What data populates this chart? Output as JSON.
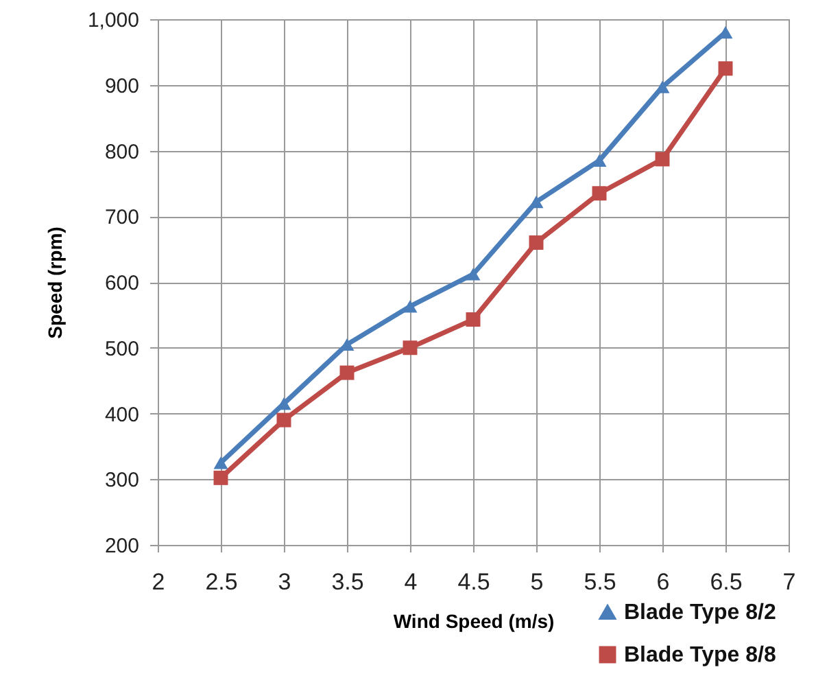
{
  "chart_data": {
    "type": "line",
    "xlabel": "Wind Speed (m/s)",
    "ylabel": "Speed (rpm)",
    "x": [
      2.5,
      3,
      3.5,
      4,
      4.5,
      5,
      5.5,
      6,
      6.5
    ],
    "series": [
      {
        "name": "Blade Type 8/2",
        "color": "#4a7ebb",
        "marker": "triangle",
        "values": [
          325,
          415,
          505,
          563,
          612,
          722,
          785,
          897,
          980
        ]
      },
      {
        "name": "Blade Type 8/8",
        "color": "#be4b48",
        "marker": "square",
        "values": [
          302,
          390,
          462,
          500,
          543,
          660,
          735,
          787,
          925
        ]
      }
    ],
    "xlim": [
      2,
      7
    ],
    "xticks": [
      2,
      2.5,
      3,
      3.5,
      4,
      4.5,
      5,
      5.5,
      6,
      6.5,
      7
    ],
    "ylim": [
      200,
      1000
    ],
    "yticks": [
      200,
      300,
      400,
      500,
      600,
      700,
      800,
      900,
      {
        "value": 1000,
        "label": "1,000"
      }
    ],
    "grid": true,
    "legend": "bottom right",
    "line_style": "solid"
  }
}
